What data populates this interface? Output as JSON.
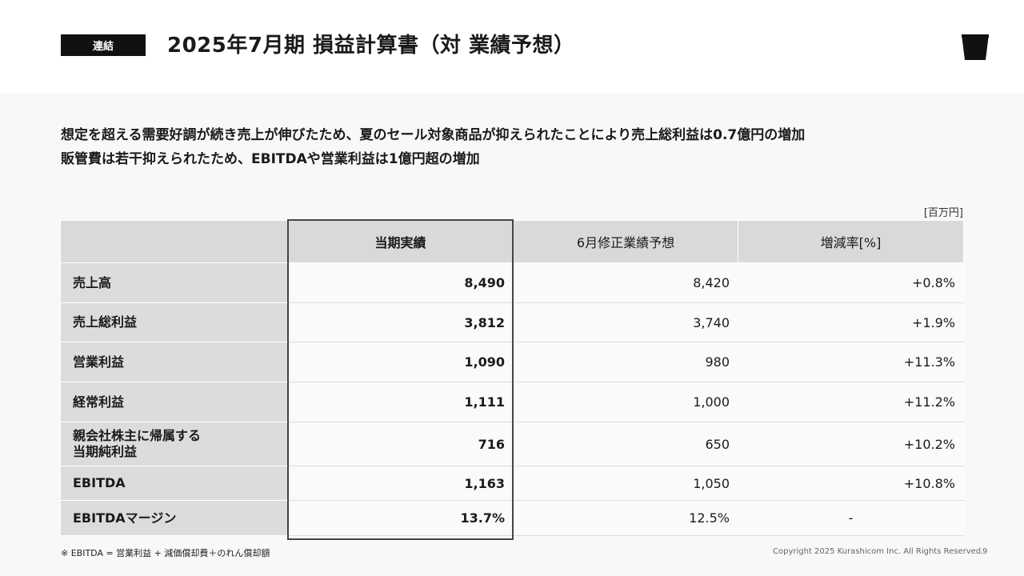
{
  "header": {
    "badge": "連結",
    "title": "2025年7月期 損益計算書（対 業績予想）",
    "logo_icon": "bucket-logo-icon"
  },
  "summary": {
    "line1": "想定を超える需要好調が続き売上が伸びたため、夏のセール対象商品が抑えられたことにより売上総利益は0.7億円の増加",
    "line2": "販管費は若干抑えられたため、EBITDAや営業利益は1億円超の増加"
  },
  "unit": "[百万円]",
  "table": {
    "headers": [
      "",
      "当期実績",
      "6月修正業績予想",
      "増減率[%]"
    ],
    "rows": [
      {
        "label": "売上高",
        "label2": "",
        "actual": "8,490",
        "forecast": "8,420",
        "change": "+0.8%"
      },
      {
        "label": "売上総利益",
        "label2": "",
        "actual": "3,812",
        "forecast": "3,740",
        "change": "+1.9%"
      },
      {
        "label": "営業利益",
        "label2": "",
        "actual": "1,090",
        "forecast": "980",
        "change": "+11.3%"
      },
      {
        "label": "経常利益",
        "label2": "",
        "actual": "1,111",
        "forecast": "1,000",
        "change": "+11.2%"
      },
      {
        "label": "親会社株主に帰属する",
        "label2": "当期純利益",
        "actual": "716",
        "forecast": "650",
        "change": "+10.2%"
      },
      {
        "label": "EBITDA",
        "label2": "",
        "actual": "1,163",
        "forecast": "1,050",
        "change": "+10.8%"
      },
      {
        "label": "EBITDAマージン",
        "label2": "",
        "actual": "13.7%",
        "forecast": "12.5%",
        "change": "-"
      }
    ]
  },
  "footer": {
    "note": "※ EBITDA = 営業利益 + 減価償却費＋のれん償却額",
    "copyright": "Copyright 2025 Kurashicom Inc. All Rights Reserved.",
    "page": "9"
  },
  "colors": {
    "badge_bg": "#111111",
    "header_bg": "#d9d9d9",
    "label_bg": "#dcdcdc",
    "cell_bg": "#fafafa",
    "page_bg": "#f8f8f8"
  }
}
